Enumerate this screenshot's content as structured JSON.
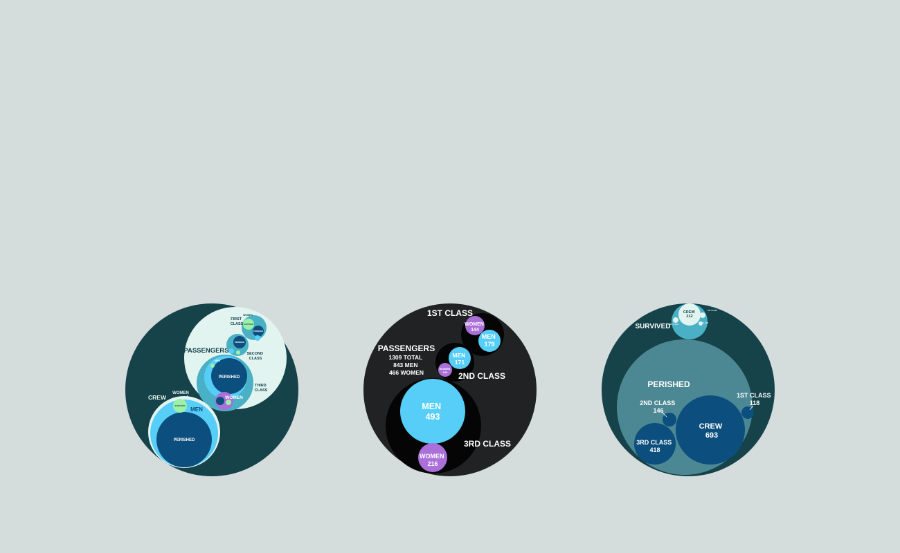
{
  "colors": {
    "background": "#d4dddc",
    "dark_teal": "#16424a",
    "mint": "#e2f4f0",
    "cyan": "#49b0c6",
    "light_blue": "#56cef7",
    "navy": "#0c4e7d",
    "green": "#9cf1a6",
    "purple": "#aa6fd8",
    "black": "#050505",
    "charcoal": "#212224",
    "slate_teal": "#4c8894"
  },
  "chart_data": [
    {
      "type": "circle-packing",
      "title": "",
      "root": {
        "children": [
          {
            "name": "CREW",
            "children": [
              {
                "name": "WOMEN",
                "children": [
                  {
                    "name": "SURVIVED"
                  }
                ]
              },
              {
                "name": "MEN",
                "children": [
                  {
                    "name": "PERISHED"
                  }
                ]
              }
            ]
          },
          {
            "name": "PASSENGERS",
            "children": [
              {
                "name": "FIRST CLASS",
                "children": [
                  {
                    "name": "WOMEN"
                  },
                  {
                    "name": "SURVIVED"
                  },
                  {
                    "name": "PERISHED"
                  }
                ]
              },
              {
                "name": "SECOND CLASS",
                "children": [
                  {
                    "name": "PERISHED"
                  }
                ]
              },
              {
                "name": "THIRD CLASS",
                "children": [
                  {
                    "name": "MEN"
                  },
                  {
                    "name": "PERISHED"
                  },
                  {
                    "name": "WOMEN"
                  }
                ]
              }
            ]
          }
        ]
      },
      "labels": {
        "crew": "CREW",
        "crew_women": "WOMEN",
        "crew_men": "MEN",
        "crew_survived": "SURVIVED",
        "crew_perished": "PERISHED",
        "passengers": "PASSENGERS",
        "first_class": [
          "FIRST",
          "CLASS"
        ],
        "first_women": "WOMEN",
        "first_survived": "SURVIVED",
        "first_perished": "PERISHED",
        "second_class": [
          "SECOND",
          "CLASS"
        ],
        "second_perished": "PERISHED",
        "third_class": [
          "THIRD",
          "CLASS"
        ],
        "third_men": "MEN",
        "third_perished": "PERISHED",
        "third_women": "WOMEN"
      }
    },
    {
      "type": "circle-packing",
      "title": "",
      "summary": {
        "label": "PASSENGERS",
        "lines": [
          "1309 TOTAL",
          "843 MEN",
          "466 WOMEN"
        ]
      },
      "classes": [
        {
          "name": "1ST CLASS",
          "men": 179,
          "women": 144
        },
        {
          "name": "2ND CLASS",
          "men": 171,
          "women": 106
        },
        {
          "name": "3RD CLASS",
          "men": 493,
          "women": 216
        }
      ],
      "series_labels": {
        "men": "MEN",
        "women": "WOMEN"
      }
    },
    {
      "type": "circle-packing",
      "title": "",
      "groups": [
        {
          "name": "SURVIVED",
          "children": [
            {
              "name": "CREW",
              "value": 212
            },
            {
              "name": "1ST CLASS",
              "value": null
            },
            {
              "name": "2ND CLASS",
              "value": null
            },
            {
              "name": "3RD CLASS",
              "value": null
            }
          ]
        },
        {
          "name": "PERISHED",
          "children": [
            {
              "name": "CREW",
              "value": 693
            },
            {
              "name": "3RD CLASS",
              "value": 418
            },
            {
              "name": "2ND CLASS",
              "value": 146
            },
            {
              "name": "1ST CLASS",
              "value": 118
            }
          ]
        }
      ]
    }
  ]
}
